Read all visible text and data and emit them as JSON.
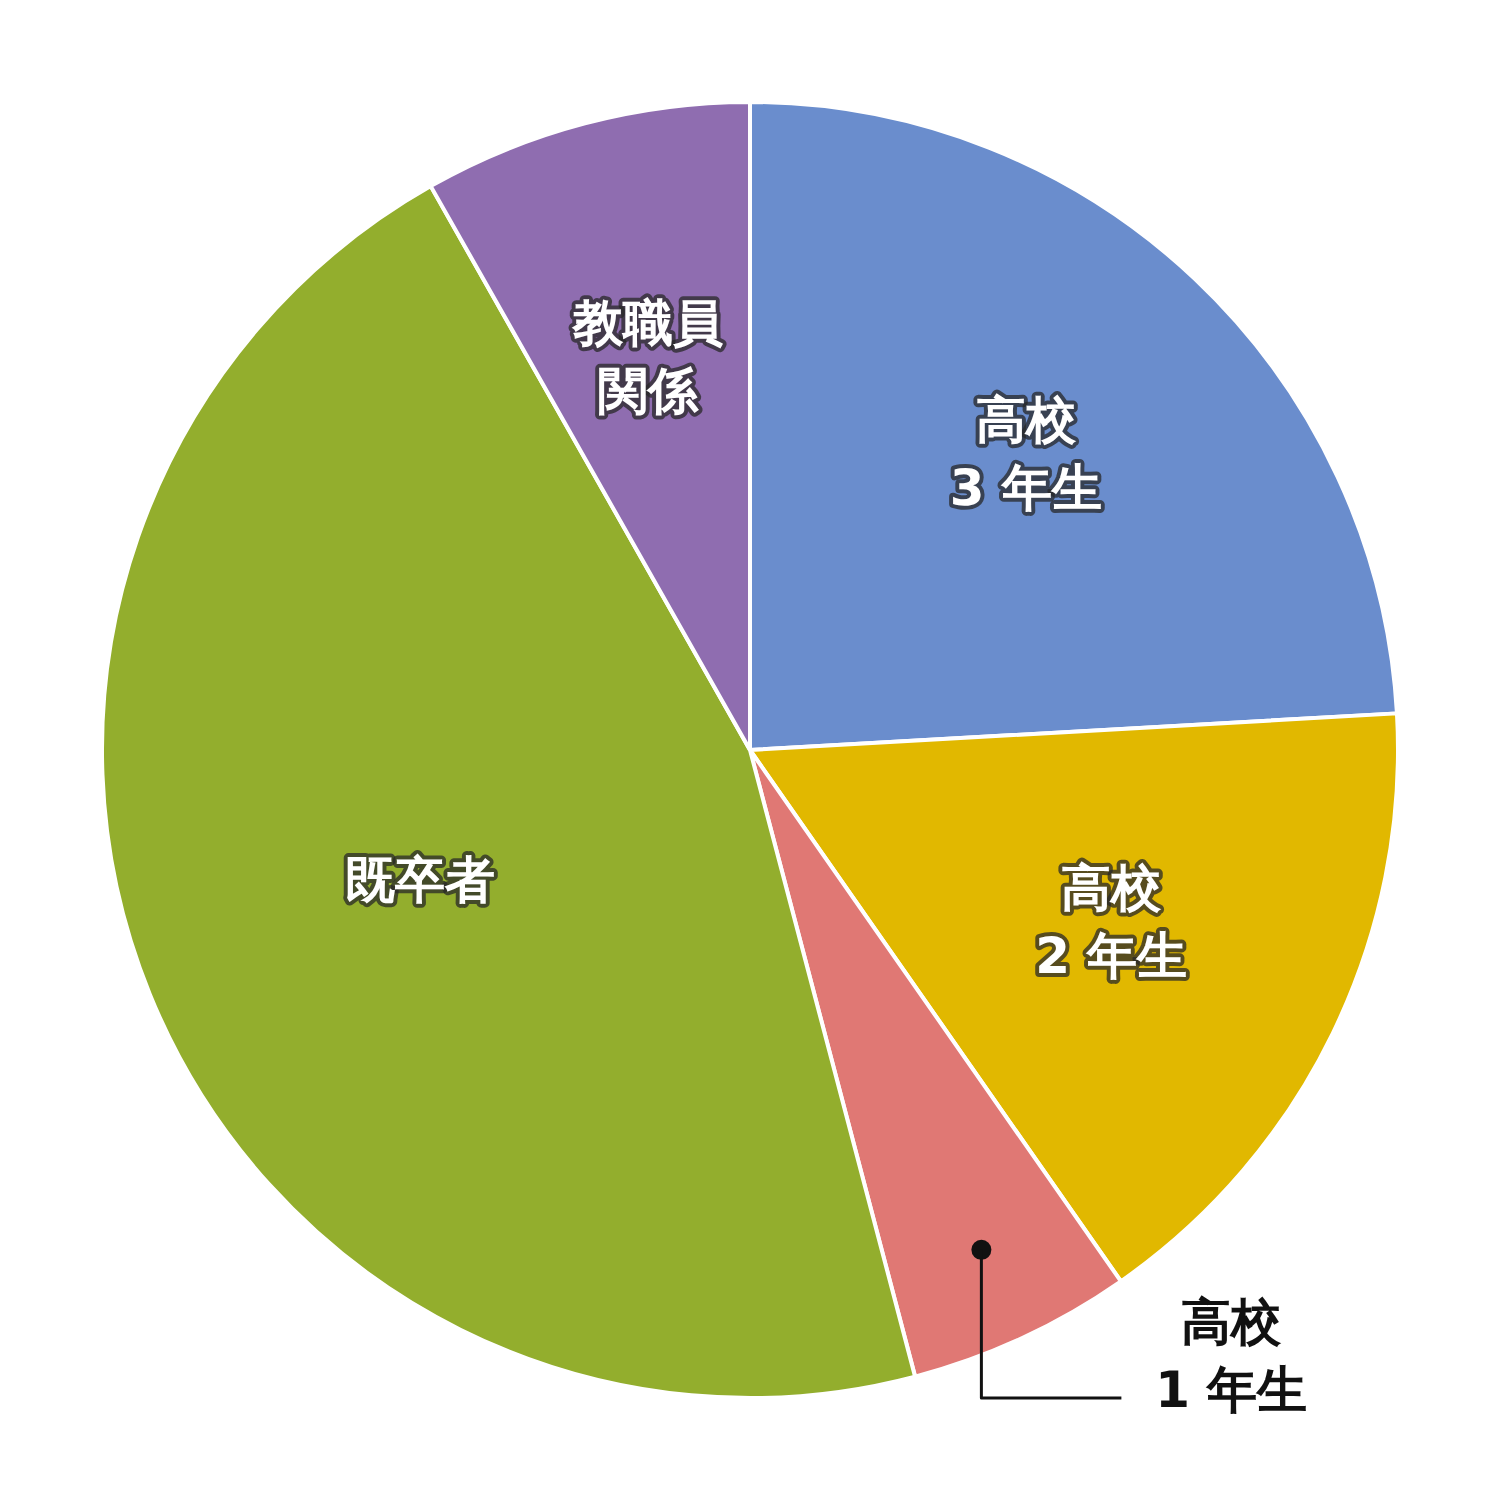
{
  "chart_data": {
    "type": "pie",
    "categories": [
      "高校\n3 年生",
      "高校\n2 年生",
      "高校\n1 年生",
      "既卒者",
      "教職員関係"
    ],
    "values": [
      24.1,
      16.2,
      5.6,
      45.9,
      8.2
    ],
    "colors": [
      "#6a8dcd",
      "#e1b800",
      "#e07874",
      "#93ae2d",
      "#8f6db0"
    ],
    "legend": false
  }
}
